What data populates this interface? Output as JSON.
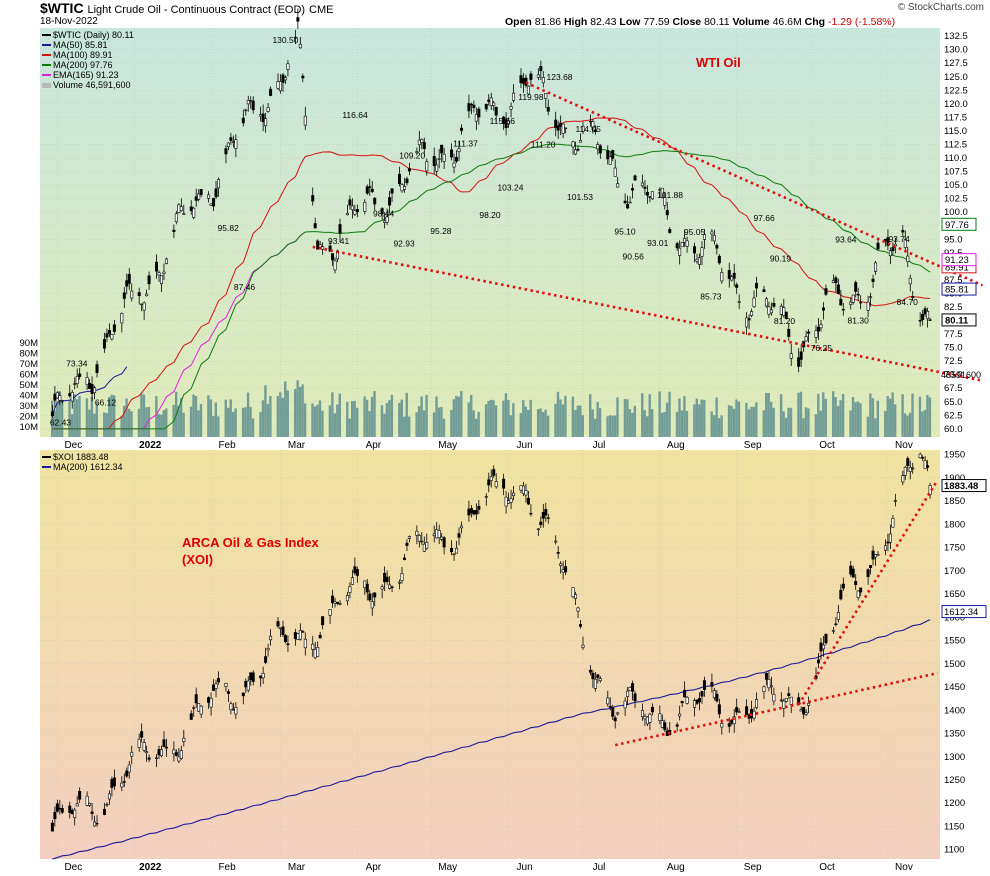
{
  "header": {
    "symbol": "$WTIC",
    "name": "Light Crude Oil - Continuous Contract (EOD)",
    "exchange": "CME",
    "date": "18-Nov-2022",
    "open_label": "Open",
    "open": "81.86",
    "high_label": "High",
    "high": "82.43",
    "low_label": "Low",
    "low": "77.59",
    "close_label": "Close",
    "close": "80.11",
    "volume_label": "Volume",
    "volume": "46.6M",
    "chg_label": "Chg",
    "chg": "-1.29 (-1.58%)",
    "brand": "© StockCharts.com"
  },
  "colors": {
    "candle": "#000000",
    "ma50": "#1a1a9e",
    "ma100": "#d81010",
    "ma200": "#0a7a0a",
    "ema165": "#e020e0",
    "volume": "#5f8f8f",
    "trend": "#e01010",
    "top_bg": [
      "#c8e6de",
      "#e0ebb8"
    ],
    "bot_bg": [
      "#f0e3a0",
      "#f3cfc0"
    ]
  },
  "chart_data": [
    {
      "type": "line",
      "title": "WTI Oil",
      "legend": [
        "$WTIC (Daily) 80.11",
        "MA(50) 85.81",
        "MA(100) 89.91",
        "MA(200) 97.76",
        "EMA(165) 91.23",
        "Volume 46,591,600"
      ],
      "legend_position": "top-left",
      "ylim": [
        58.5,
        134
      ],
      "y_ticks": [
        "60.0",
        "62.5",
        "65.0",
        "67.5",
        "70.0",
        "72.5",
        "75.0",
        "77.5",
        "80.0",
        "82.5",
        "85.0",
        "87.5",
        "90.0",
        "92.5",
        "95.0",
        "97.5",
        "100.0",
        "102.5",
        "105.0",
        "107.5",
        "110.0",
        "112.5",
        "115.0",
        "117.5",
        "120.0",
        "122.5",
        "125.0",
        "127.5",
        "130.0",
        "132.5"
      ],
      "volume_ticks": [
        "10M",
        "20M",
        "30M",
        "40M",
        "50M",
        "60M",
        "70M",
        "80M",
        "90M"
      ],
      "x_labels": [
        "Dec",
        "2022",
        "Feb",
        "Mar",
        "Apr",
        "May",
        "Jun",
        "Jul",
        "Aug",
        "Sep",
        "Oct",
        "Nov"
      ],
      "price_labels": [
        {
          "value": "62.43",
          "t": 0.05
        },
        {
          "value": "73.34",
          "t": 0.09
        },
        {
          "value": "66.12",
          "t": 0.16
        },
        {
          "value": "87.46",
          "t": 0.5
        },
        {
          "value": "95.82",
          "t": 0.46
        },
        {
          "value": "130.50",
          "t": 0.6
        },
        {
          "value": "93.41",
          "t": 0.73
        },
        {
          "value": "116.64",
          "t": 0.77
        },
        {
          "value": "98.44",
          "t": 0.84
        },
        {
          "value": "92.93",
          "t": 0.89
        },
        {
          "value": "109.20",
          "t": 0.91
        },
        {
          "value": "95.28",
          "t": 0.98
        },
        {
          "value": "111.37",
          "t": 1.04
        },
        {
          "value": "98.20",
          "t": 1.1
        },
        {
          "value": "115.56",
          "t": 1.13
        },
        {
          "value": "103.24",
          "t": 1.15
        },
        {
          "value": "119.98",
          "t": 1.2
        },
        {
          "value": "111.20",
          "t": 1.23
        },
        {
          "value": "123.68",
          "t": 1.27
        },
        {
          "value": "114.05",
          "t": 1.34
        },
        {
          "value": "101.53",
          "t": 1.32
        },
        {
          "value": "95.10",
          "t": 1.43
        },
        {
          "value": "90.56",
          "t": 1.45
        },
        {
          "value": "101.88",
          "t": 1.54
        },
        {
          "value": "93.01",
          "t": 1.51
        },
        {
          "value": "95.05",
          "t": 1.6
        },
        {
          "value": "85.73",
          "t": 1.64
        },
        {
          "value": "97.66",
          "t": 1.77
        },
        {
          "value": "90.19",
          "t": 1.81
        },
        {
          "value": "81.20",
          "t": 1.82
        },
        {
          "value": "76.25",
          "t": 1.91
        },
        {
          "value": "93.64",
          "t": 1.97
        },
        {
          "value": "81.30",
          "t": 2.0
        },
        {
          "value": "93.74",
          "t": 2.1
        },
        {
          "value": "84.70",
          "t": 2.12
        }
      ],
      "last_values": {
        "close": "80.11",
        "ma50": "85.81",
        "ma100": "89.91",
        "ema165": "91.23",
        "ma200": "97.76",
        "volume": "46591600"
      },
      "ohlc_sample_every_n_days": 1,
      "key_points": [
        {
          "date": "2021-12-02",
          "price": 62.43
        },
        {
          "date": "2022-03-08",
          "price": 130.5
        },
        {
          "date": "2022-03-16",
          "price": 93.41
        },
        {
          "date": "2022-06-08",
          "price": 123.68
        },
        {
          "date": "2022-09-26",
          "price": 76.25
        },
        {
          "date": "2022-11-07",
          "price": 93.74
        },
        {
          "date": "2022-11-18",
          "price": 80.11
        }
      ],
      "trendlines": [
        {
          "from": [
            "2022-06-08",
            123.9
          ],
          "to": [
            "2022-11-21",
            90.5
          ]
        },
        {
          "from": [
            "2022-03-14",
            93.6
          ],
          "to": [
            "2022-11-21",
            70.4
          ]
        }
      ]
    },
    {
      "type": "line",
      "title": "ARCA Oil & Gas Index (XOI)",
      "legend": [
        "$XOI 1883.48",
        "MA(200) 1612.34"
      ],
      "legend_position": "top-left",
      "ylim": [
        1080,
        1960
      ],
      "y_ticks": [
        "1100",
        "1150",
        "1200",
        "1250",
        "1300",
        "1350",
        "1400",
        "1450",
        "1500",
        "1550",
        "1600",
        "1650",
        "1700",
        "1750",
        "1800",
        "1850",
        "1900",
        "1950"
      ],
      "x_labels": [
        "Dec",
        "2022",
        "Feb",
        "Mar",
        "Apr",
        "May",
        "Jun",
        "Jul",
        "Aug",
        "Sep",
        "Oct",
        "Nov"
      ],
      "last_values": {
        "close": "1883.48",
        "ma200": "1612.34"
      },
      "key_points": [
        {
          "date": "2021-12-01",
          "price": 1140
        },
        {
          "date": "2022-03-08",
          "price": 1560
        },
        {
          "date": "2022-06-08",
          "price": 1900
        },
        {
          "date": "2022-07-14",
          "price": 1390
        },
        {
          "date": "2022-09-26",
          "price": 1420
        },
        {
          "date": "2022-11-14",
          "price": 1940
        },
        {
          "date": "2022-11-18",
          "price": 1883.48
        }
      ],
      "trendlines": [
        {
          "from": [
            "2022-07-14",
            1325
          ],
          "to": [
            "2022-11-21",
            1480
          ]
        },
        {
          "from": [
            "2022-09-26",
            1412
          ],
          "to": [
            "2022-11-21",
            1895
          ]
        }
      ]
    }
  ]
}
